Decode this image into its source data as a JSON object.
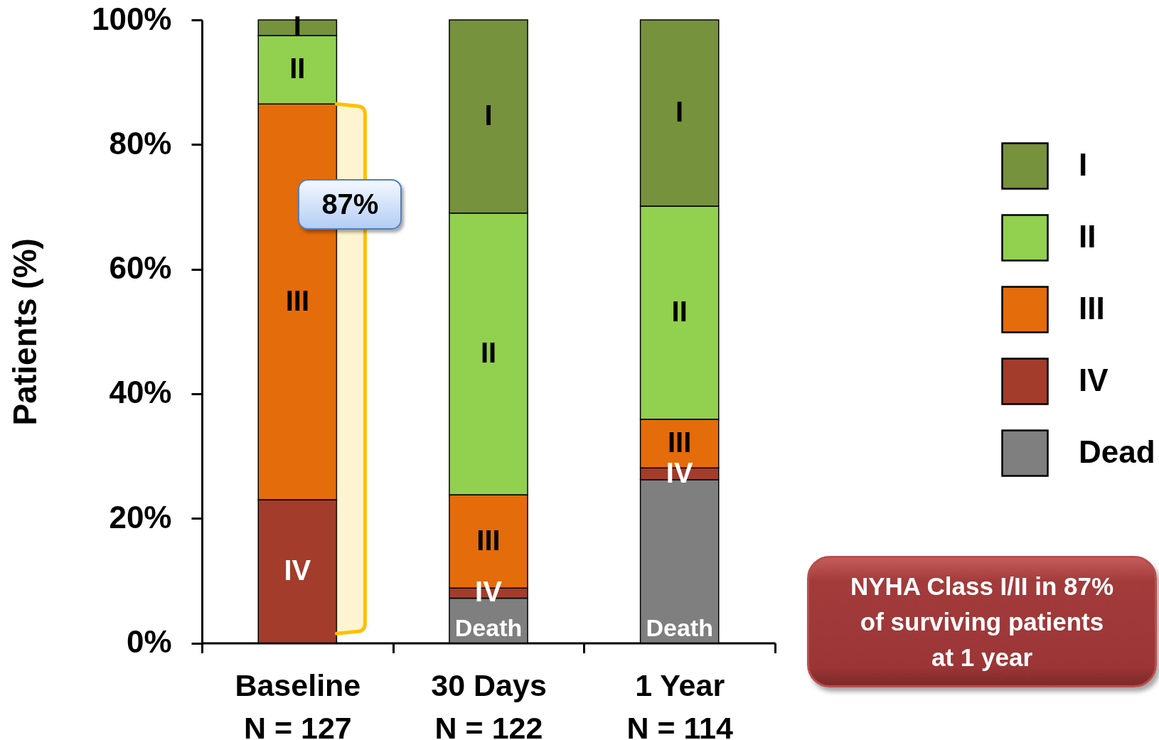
{
  "chart_data": {
    "type": "bar",
    "ylabel": "Patients (%)",
    "categories": [
      "Baseline\nN = 127",
      "30 Days\nN = 122",
      "1 Year\nN = 114"
    ],
    "stacked": true,
    "series": [
      {
        "name": "Dead",
        "color": "#7f7f7f",
        "values": [
          null,
          7.2,
          26.2
        ],
        "value_labels": [
          null,
          "Death",
          "Death"
        ]
      },
      {
        "name": "IV",
        "color": "#a33c2b",
        "values": [
          23,
          1.6,
          1.9
        ],
        "value_labels": [
          "IV",
          "IV",
          "IV"
        ]
      },
      {
        "name": "III",
        "color": "#e46c0a",
        "values": [
          63.5,
          15,
          7.8
        ],
        "value_labels": [
          "III",
          "III",
          "III"
        ]
      },
      {
        "name": "II",
        "color": "#92d050",
        "values": [
          11,
          45.2,
          34.2
        ],
        "value_labels": [
          "II",
          "II",
          "II"
        ]
      },
      {
        "name": "I",
        "color": "#76923c",
        "values": [
          2.5,
          31,
          29.9
        ],
        "value_labels": [
          "I",
          "I",
          "I"
        ]
      }
    ],
    "ylim": [
      0,
      100
    ],
    "yticks": [
      {
        "value": 0,
        "label": "0%"
      },
      {
        "value": 20,
        "label": "20%"
      },
      {
        "value": 40,
        "label": "40%"
      },
      {
        "value": 60,
        "label": "60%"
      },
      {
        "value": 80,
        "label": "80%"
      },
      {
        "value": 100,
        "label": "100%"
      }
    ],
    "legend": "right",
    "bands": [
      {
        "axis": "y",
        "from": 1.5,
        "to": 86.5,
        "label": "87%",
        "color": "#ffc000"
      }
    ],
    "annotations": [
      "NYHA Class I/II in 87%\nof surviving patients\nat 1 year"
    ]
  }
}
